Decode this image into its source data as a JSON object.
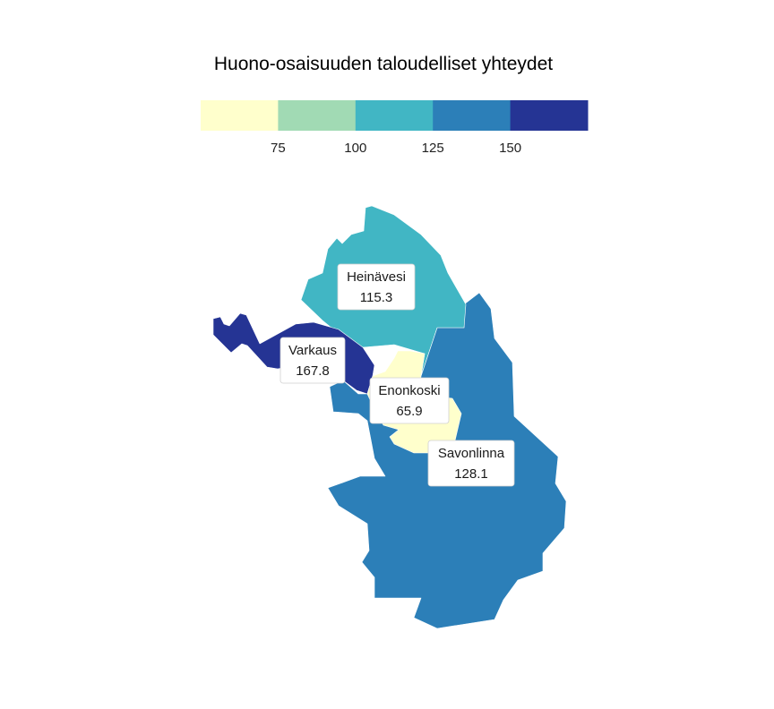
{
  "chart_data": {
    "type": "choropleth",
    "title": "Huono-osaisuuden taloudelliset yhteydet",
    "legend": {
      "placement": "top",
      "breaks": [
        75,
        100,
        125,
        150
      ],
      "tick_labels": [
        "75",
        "100",
        "125",
        "150"
      ],
      "colors": [
        "#ffffcc",
        "#a1dab4",
        "#41b6c4",
        "#2c7fb8",
        "#253494"
      ]
    },
    "regions": [
      {
        "id": "heinavesi",
        "name": "Heinävesi",
        "value": 115.3,
        "value_label": "115.3",
        "color": "#41b6c4"
      },
      {
        "id": "varkaus",
        "name": "Varkaus",
        "value": 167.8,
        "value_label": "167.8",
        "color": "#253494"
      },
      {
        "id": "enonkoski",
        "name": "Enonkoski",
        "value": 65.9,
        "value_label": "65.9",
        "color": "#ffffcc"
      },
      {
        "id": "savonlinna",
        "name": "Savonlinna",
        "value": 128.1,
        "value_label": "128.1",
        "color": "#2c7fb8"
      }
    ]
  }
}
